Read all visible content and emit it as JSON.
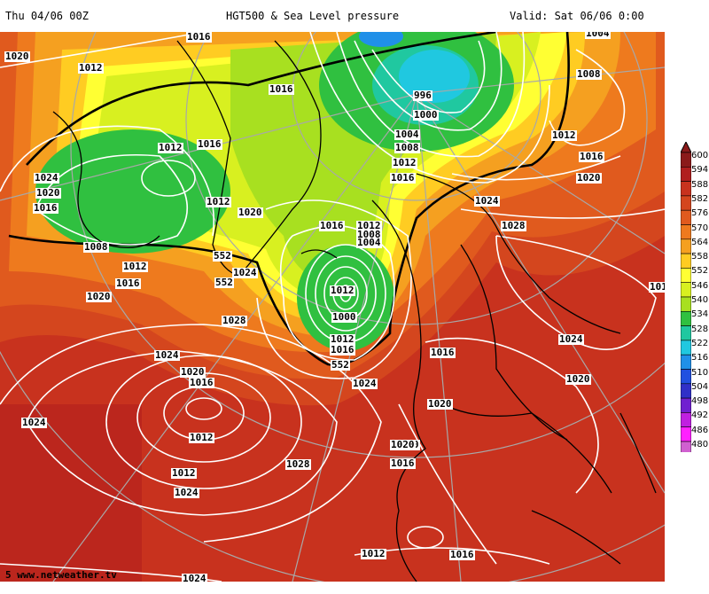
{
  "header": {
    "run": "Thu 04/06 00Z",
    "title": "HGT500 & Sea Level pressure",
    "valid": "Valid: Sat 06/06 0:00"
  },
  "footer": {
    "credit": "5 www.netweather.tv"
  },
  "legend": {
    "values": [
      "600",
      "594",
      "588",
      "582",
      "576",
      "570",
      "564",
      "558",
      "552",
      "546",
      "540",
      "534",
      "528",
      "522",
      "516",
      "510",
      "504",
      "498",
      "492",
      "486",
      "480"
    ],
    "colors": [
      "#8b1a1a",
      "#b01e1e",
      "#c8321e",
      "#d4461e",
      "#e05a1e",
      "#ee7a1e",
      "#f5a020",
      "#ffcc22",
      "#ffff33",
      "#d8f020",
      "#a8e020",
      "#30c040",
      "#20c8a0",
      "#20c8e0",
      "#2090e8",
      "#2050e0",
      "#3030c8",
      "#7020d0",
      "#c020e0",
      "#ff20ff",
      "#d060d0"
    ]
  },
  "isobar_labels": [
    "1016",
    "1020",
    "1012",
    "1008",
    "1004",
    "1016",
    "1016",
    "1012",
    "996",
    "1000",
    "1004",
    "1008",
    "1012",
    "1016",
    "1012",
    "1016",
    "1020",
    "1024",
    "1020",
    "1016",
    "1012",
    "1020",
    "1008",
    "1012",
    "1016",
    "1020",
    "1016",
    "1012",
    "1008",
    "1004",
    "1024",
    "1028",
    "552",
    "1024",
    "1028",
    "1012",
    "1000",
    "1012",
    "1016",
    "552",
    "1016",
    "101",
    "1024",
    "1024",
    "1028",
    "1024",
    "1020",
    "1016",
    "1012",
    "1020",
    "1024",
    "1020",
    "1016",
    "1020",
    "1012",
    "1028",
    "1016",
    "1024",
    "1020",
    "1024",
    "552",
    "1024",
    "1012",
    "1016",
    "1024"
  ]
}
